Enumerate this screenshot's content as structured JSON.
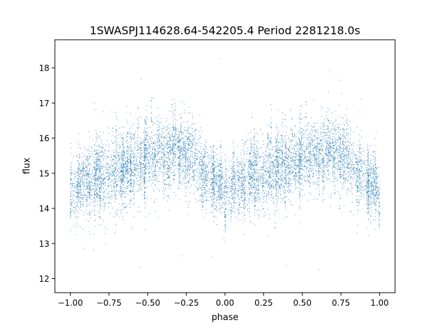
{
  "chart_data": {
    "type": "scatter",
    "title": "1SWASPJ114628.64-542205.4 Period 2281218.0s",
    "xlabel": "phase",
    "ylabel": "flux",
    "xlim": [
      -1.1,
      1.1
    ],
    "ylim": [
      11.6,
      18.8
    ],
    "x_ticks": [
      -1.0,
      -0.75,
      -0.5,
      -0.25,
      0.0,
      0.25,
      0.5,
      0.75,
      1.0
    ],
    "x_tick_labels": [
      "−1.00",
      "−0.75",
      "−0.50",
      "−0.25",
      "0.00",
      "0.25",
      "0.50",
      "0.75",
      "1.00"
    ],
    "y_ticks": [
      12,
      13,
      14,
      15,
      16,
      17,
      18
    ],
    "y_tick_labels": [
      "12",
      "13",
      "14",
      "15",
      "16",
      "17",
      "18"
    ],
    "grid": false,
    "legend": "none",
    "marker_color": "#1f77b4",
    "series": [
      {
        "x_range": [
          -1.0,
          1.0
        ],
        "repeats_every": 1.0,
        "baseline_flux": 15.0,
        "approx_points": 9000,
        "profile": [
          {
            "phase": 0.0,
            "median_flux": 14.45,
            "spread": 0.35
          },
          {
            "phase": 0.1,
            "median_flux": 14.75,
            "spread": 0.45
          },
          {
            "phase": 0.2,
            "median_flux": 14.85,
            "spread": 0.5
          },
          {
            "phase": 0.3,
            "median_flux": 15.0,
            "spread": 0.5
          },
          {
            "phase": 0.4,
            "median_flux": 15.2,
            "spread": 0.5
          },
          {
            "phase": 0.5,
            "median_flux": 15.45,
            "spread": 0.45
          },
          {
            "phase": 0.6,
            "median_flux": 15.55,
            "spread": 0.45
          },
          {
            "phase": 0.7,
            "median_flux": 15.6,
            "spread": 0.45
          },
          {
            "phase": 0.8,
            "median_flux": 15.35,
            "spread": 0.5
          },
          {
            "phase": 0.9,
            "median_flux": 14.9,
            "spread": 0.45
          },
          {
            "phase": 1.0,
            "median_flux": 14.45,
            "spread": 0.35
          }
        ],
        "outlier_range": [
          11.9,
          18.5
        ]
      }
    ]
  }
}
